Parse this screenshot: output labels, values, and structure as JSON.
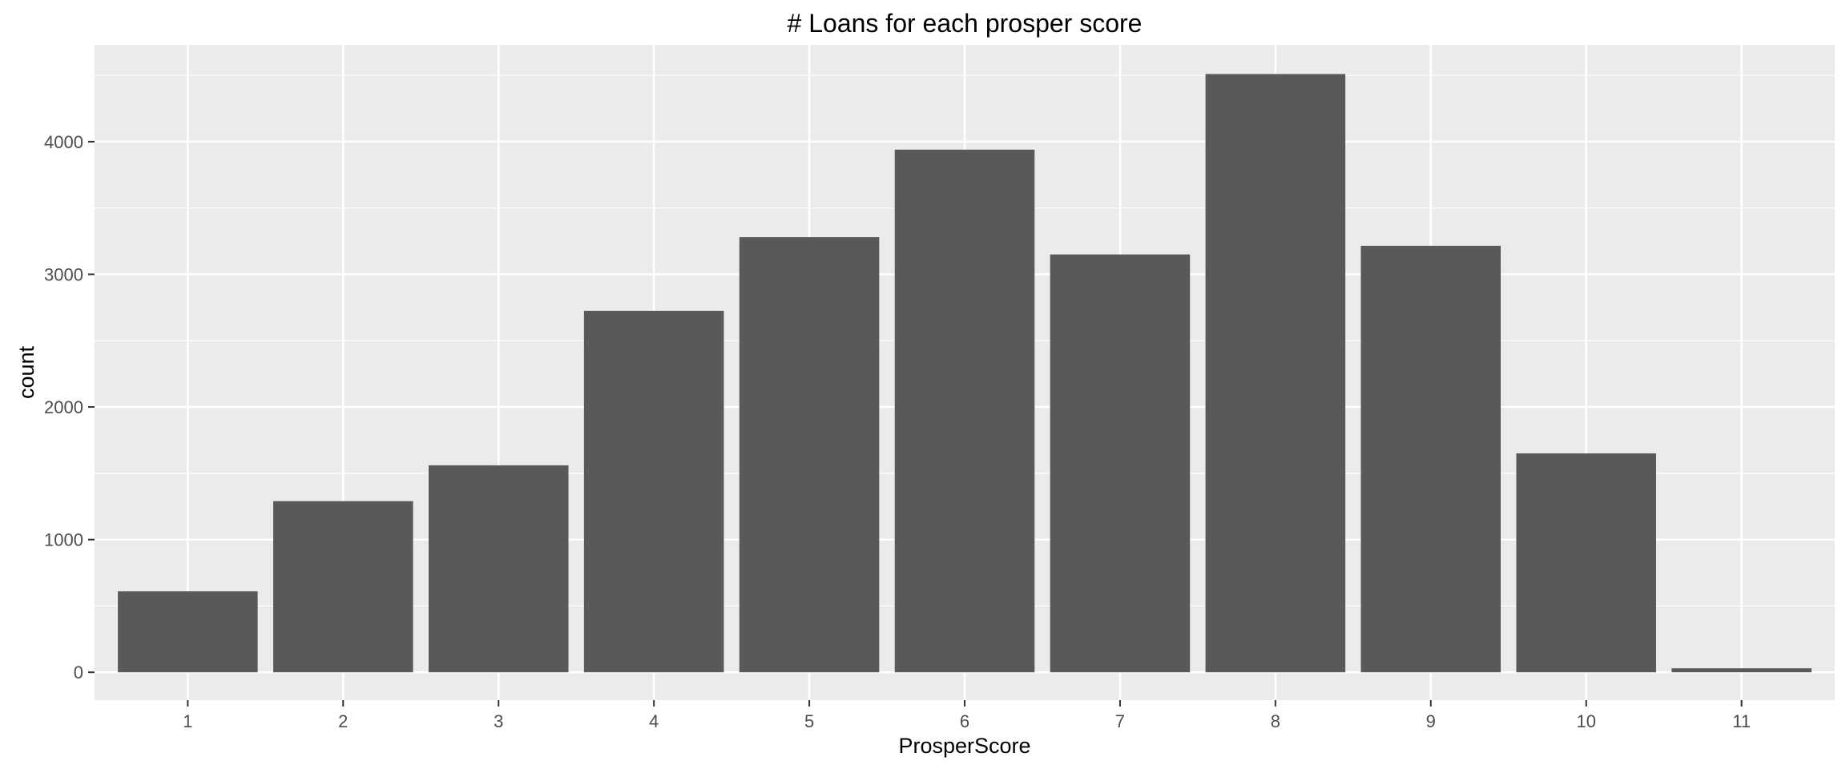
{
  "chart_data": {
    "type": "bar",
    "title": "# Loans for each prosper score",
    "xlabel": "ProsperScore",
    "ylabel": "count",
    "categories": [
      "1",
      "2",
      "3",
      "4",
      "5",
      "6",
      "7",
      "8",
      "9",
      "10",
      "11"
    ],
    "values": [
      610,
      1290,
      1560,
      2725,
      3280,
      3940,
      3150,
      4510,
      3215,
      1650,
      30
    ],
    "yticks": [
      0,
      1000,
      2000,
      3000,
      4000
    ],
    "ylim": [
      -210,
      4730
    ],
    "grid": true,
    "bar_color": "#595959",
    "panel_color": "#ebebeb",
    "grid_color": "#ffffff"
  }
}
